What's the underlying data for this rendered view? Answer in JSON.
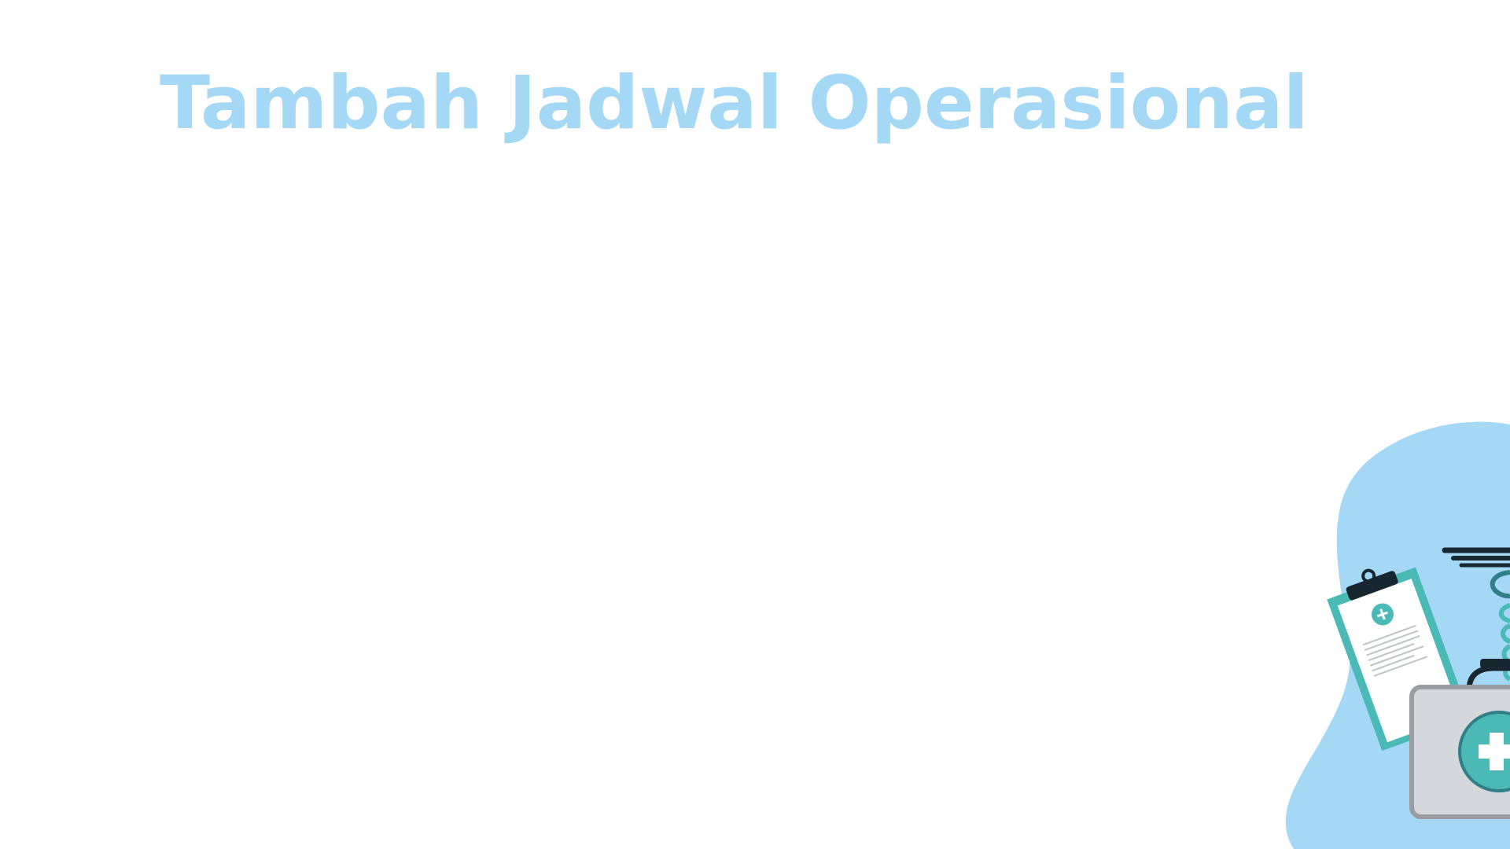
{
  "page": {
    "title": "Tambah Jadwal Operasional"
  },
  "colors": {
    "title": "#a4d8f5",
    "blob": "#a4d8f5",
    "teal": "#4bbab7",
    "dark": "#17262f",
    "kit_body": "#d4d7db",
    "kit_border": "#9a9ca1"
  },
  "illustration": {
    "icons": [
      "background-blob",
      "clipboard-icon",
      "caduceus-icon",
      "first-aid-kit-icon"
    ]
  }
}
